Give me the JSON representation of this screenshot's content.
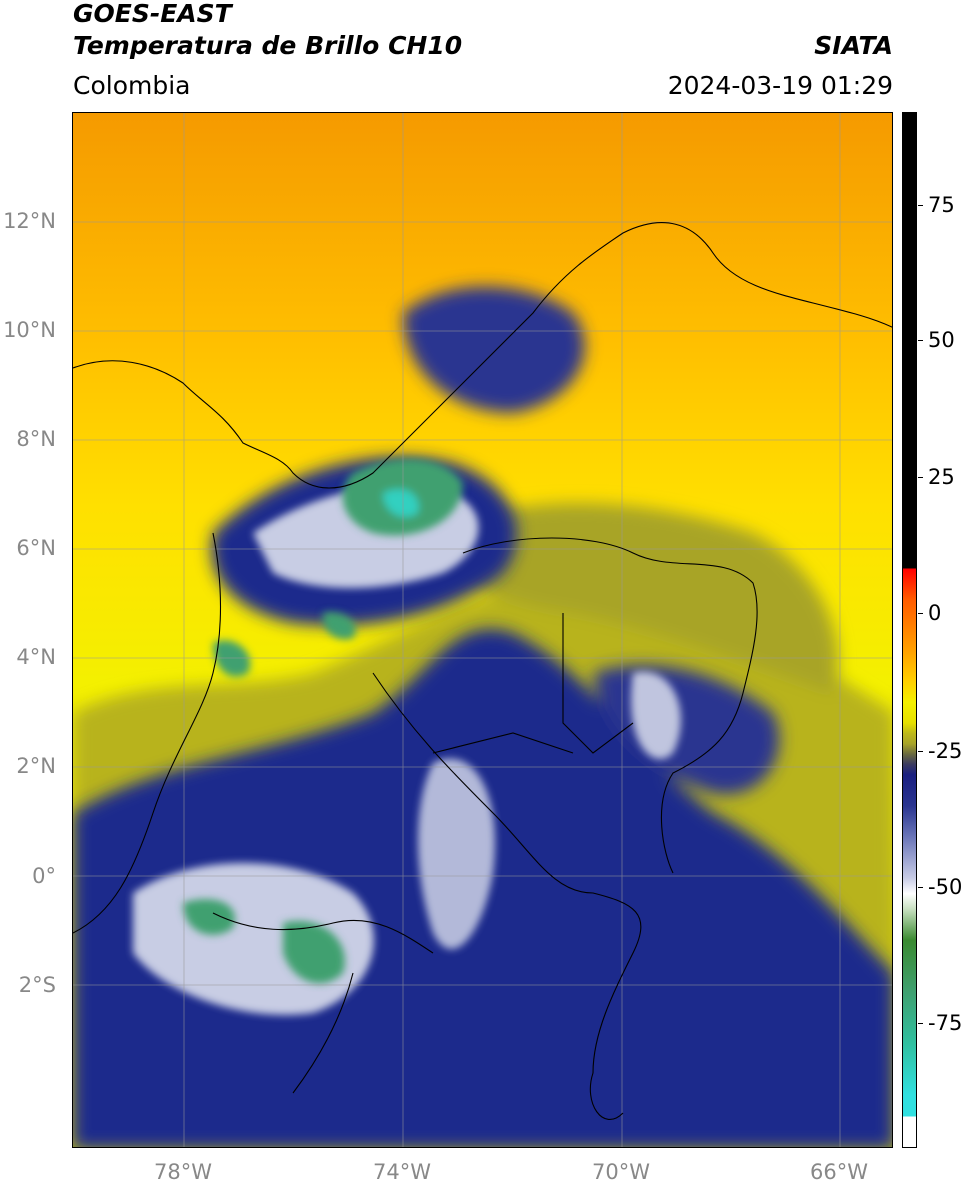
{
  "header": {
    "title_line1": "GOES-EAST",
    "title_line2": "Temperatura de Brillo CH10",
    "organization": "SIATA",
    "region": "Colombia",
    "timestamp": "2024-03-19 01:29"
  },
  "map": {
    "lat_labels": [
      {
        "text": "12°N",
        "value": 12
      },
      {
        "text": "10°N",
        "value": 10
      },
      {
        "text": "8°N",
        "value": 8
      },
      {
        "text": "6°N",
        "value": 6
      },
      {
        "text": "4°N",
        "value": 4
      },
      {
        "text": "2°N",
        "value": 2
      },
      {
        "text": "0°",
        "value": 0
      },
      {
        "text": "2°S",
        "value": -2
      }
    ],
    "lon_labels": [
      {
        "text": "78°W",
        "value": -78
      },
      {
        "text": "74°W",
        "value": -74
      },
      {
        "text": "70°W",
        "value": -70
      },
      {
        "text": "66°W",
        "value": -66
      }
    ],
    "extent": {
      "lon_min": -80,
      "lon_max": -65,
      "lat_min": -5,
      "lat_max": 14
    },
    "colors": {
      "warm_top": "#f59a00",
      "warm_mid": "#ffd000",
      "yellow": "#f4f000",
      "olive": "#b8b31f",
      "navy": "#1f2a8c",
      "white_cloud": "#e8ecf5",
      "green": "#3fa070",
      "teal": "#30d0c0"
    }
  },
  "colorbar": {
    "ticks": [
      {
        "text": "75",
        "value": 75
      },
      {
        "text": "50",
        "value": 50
      },
      {
        "text": "25",
        "value": 25
      },
      {
        "text": "0",
        "value": 0
      },
      {
        "text": "-25",
        "value": -25
      },
      {
        "text": "-50",
        "value": -50
      },
      {
        "text": "-75",
        "value": -75
      }
    ],
    "range": [
      -95,
      90
    ]
  }
}
